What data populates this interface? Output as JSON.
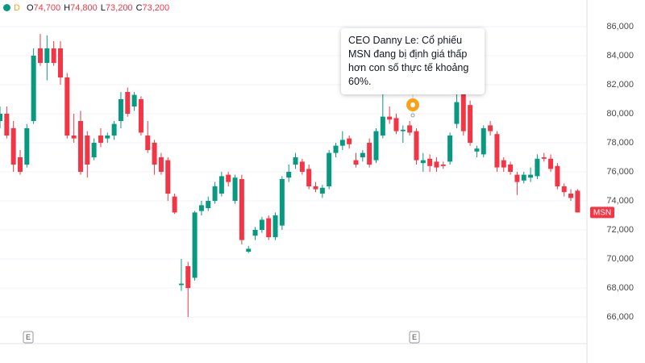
{
  "chart_data": {
    "type": "candlestick",
    "symbol": "MSN",
    "header": {
      "interval": "D",
      "open_label": "O",
      "open": "74,700",
      "high_label": "H",
      "high": "74,800",
      "low_label": "L",
      "low": "73,200",
      "close_label": "C",
      "close": "73,200"
    },
    "annotation": "CEO Danny Le: Cổ phiếu MSN đang bị định giá thấp hơn con số thực tế khoảng 60%.",
    "event_markers": [
      "E",
      "E"
    ],
    "up_color": "#089981",
    "down_color": "#f23645",
    "ylim": [
      64200,
      87800
    ],
    "yticks": [
      {
        "value": 66000,
        "label": "66,000"
      },
      {
        "value": 68000,
        "label": "68,000"
      },
      {
        "value": 70000,
        "label": "70,000"
      },
      {
        "value": 72000,
        "label": "72,000"
      },
      {
        "value": 74000,
        "label": "74,000"
      },
      {
        "value": 76000,
        "label": "76,000"
      },
      {
        "value": 78000,
        "label": "78,000"
      },
      {
        "value": 80000,
        "label": "80,000"
      },
      {
        "value": 82000,
        "label": "82,000"
      },
      {
        "value": 84000,
        "label": "84,000"
      },
      {
        "value": 86000,
        "label": "86,000"
      }
    ],
    "grid": true,
    "categories": [
      null,
      null,
      null,
      null,
      null,
      null,
      null,
      null,
      null,
      null,
      null,
      null,
      null,
      null,
      null,
      null,
      null,
      null,
      null,
      null,
      null,
      null,
      null,
      null,
      null,
      null,
      null,
      null,
      null,
      null,
      null,
      null,
      null,
      null,
      null,
      null,
      null,
      null,
      null,
      null,
      null,
      null,
      null,
      null,
      null,
      null,
      null,
      null,
      null,
      null,
      null,
      null,
      null,
      null,
      null,
      null,
      null,
      null,
      null,
      null,
      null,
      null,
      null,
      null,
      null,
      null,
      null,
      null,
      null,
      null,
      null,
      null,
      null,
      null,
      null,
      null,
      null,
      null,
      null,
      null,
      null,
      null,
      null,
      null,
      null,
      null,
      null
    ],
    "open": [
      79500,
      80000,
      79000,
      77000,
      76500,
      79500,
      84500,
      83500,
      84500,
      84500,
      82500,
      78500,
      79500,
      78500,
      77000,
      78500,
      78300,
      78500,
      79500,
      81500,
      80500,
      81000,
      78500,
      78000,
      77000,
      76800,
      74300,
      68200,
      69500,
      68700,
      73300,
      73500,
      74000,
      74500,
      75800,
      74000,
      75500,
      70500,
      71600,
      72000,
      72800,
      71500,
      72300,
      75600,
      76500,
      76700,
      76200,
      75000,
      74500,
      75000,
      77300,
      77800,
      78300,
      76800,
      77000,
      78000,
      76800,
      78500,
      79800,
      79700,
      78800,
      79200,
      78800,
      76600,
      76900,
      76700,
      76500,
      76700,
      79300,
      81500,
      80600,
      77400,
      77200,
      79200,
      78600,
      76800,
      76500,
      75800,
      75400,
      75600,
      75700,
      77000,
      76900,
      76400,
      75000,
      74500,
      74700
    ],
    "high": [
      80500,
      80500,
      79500,
      77500,
      79300,
      84500,
      85500,
      85400,
      85000,
      85000,
      82800,
      80000,
      80200,
      78800,
      78300,
      79000,
      78700,
      79500,
      81500,
      81800,
      81500,
      81200,
      79500,
      78200,
      77300,
      77000,
      74500,
      70000,
      69800,
      73300,
      74000,
      74300,
      75300,
      76000,
      76000,
      75800,
      75800,
      70900,
      72200,
      72900,
      73000,
      73200,
      75700,
      76500,
      77300,
      76900,
      76500,
      75300,
      75100,
      77500,
      78000,
      78800,
      78500,
      77300,
      77500,
      78300,
      79000,
      81800,
      80500,
      80000,
      79200,
      79500,
      79000,
      77300,
      77200,
      77000,
      76700,
      78700,
      82000,
      82000,
      80900,
      77800,
      79200,
      79500,
      78800,
      77000,
      76700,
      76000,
      76000,
      76300,
      77200,
      77300,
      77200,
      76600,
      75200,
      74800,
      74800
    ],
    "low": [
      79000,
      78300,
      76000,
      75800,
      76300,
      79300,
      83300,
      82300,
      83300,
      82000,
      78300,
      78000,
      75800,
      75600,
      76800,
      77700,
      78000,
      78200,
      79000,
      79800,
      80200,
      78500,
      77300,
      75800,
      75800,
      74000,
      73100,
      67800,
      66000,
      68500,
      73000,
      73300,
      73800,
      74300,
      75000,
      73800,
      71000,
      70400,
      71300,
      71800,
      71300,
      71300,
      72000,
      75300,
      76200,
      75800,
      74800,
      74600,
      74200,
      74800,
      77000,
      77500,
      77600,
      76300,
      76700,
      76300,
      76600,
      78300,
      79300,
      78600,
      78000,
      78500,
      76500,
      76000,
      76000,
      76000,
      76200,
      76500,
      79000,
      78500,
      77800,
      77000,
      77000,
      78500,
      76000,
      76000,
      75800,
      74400,
      75200,
      75300,
      75500,
      76700,
      76000,
      74800,
      74300,
      74000,
      73200
    ],
    "close": [
      80000,
      78500,
      76500,
      76000,
      79000,
      84000,
      83500,
      84500,
      83500,
      82500,
      78500,
      78300,
      76000,
      76500,
      78000,
      78000,
      78500,
      79300,
      81000,
      80000,
      81300,
      78700,
      77500,
      76500,
      76000,
      74500,
      73200,
      68300,
      68000,
      73200,
      73700,
      74000,
      75000,
      75700,
      75300,
      75600,
      71300,
      70700,
      72000,
      72700,
      71500,
      73000,
      75500,
      76000,
      77000,
      76000,
      75000,
      74800,
      74900,
      77300,
      77800,
      78200,
      77900,
      76500,
      77300,
      76500,
      78800,
      79800,
      79600,
      78800,
      78900,
      78700,
      76800,
      76800,
      76400,
      76300,
      76400,
      78500,
      80800,
      78800,
      78000,
      77600,
      79000,
      78800,
      76300,
      76300,
      76000,
      75300,
      75800,
      75800,
      76900,
      76900,
      76200,
      75000,
      74600,
      74200,
      73200
    ]
  }
}
